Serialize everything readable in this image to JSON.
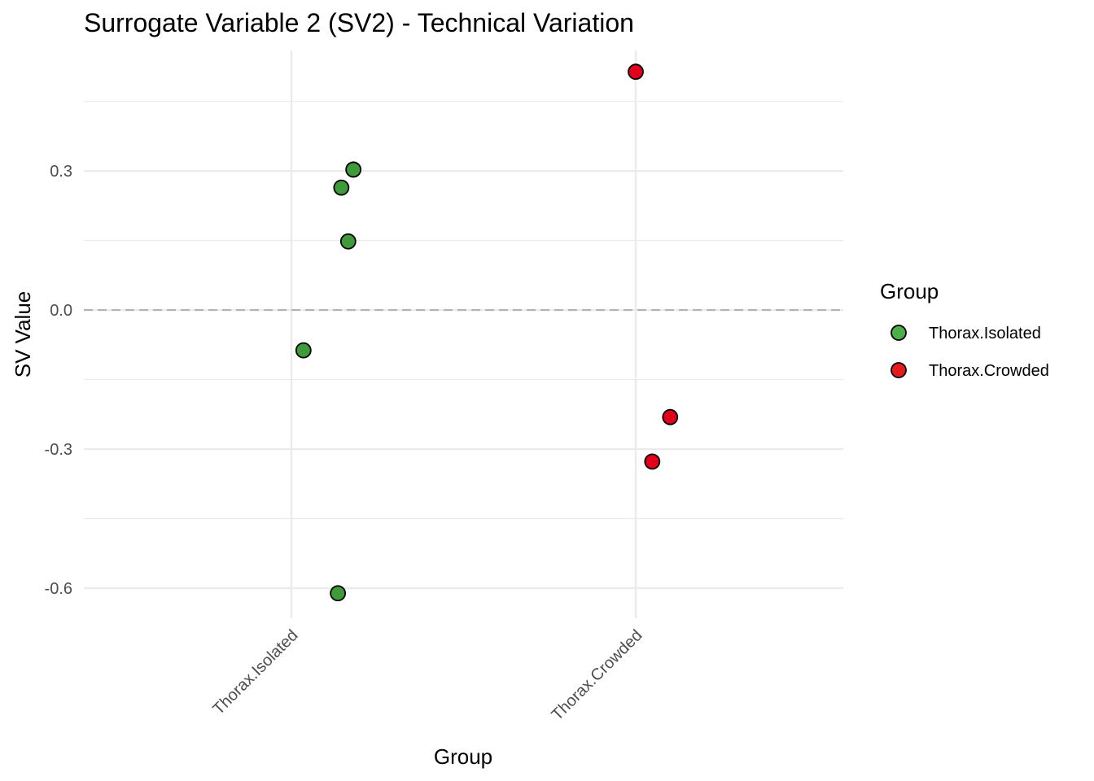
{
  "chart_data": {
    "type": "scatter",
    "title": "Surrogate Variable 2 (SV2) - Technical Variation",
    "xlabel": "Group",
    "ylabel": "SV Value",
    "categories": [
      "Thorax.Isolated",
      "Thorax.Crowded"
    ],
    "ylim": [
      -0.665,
      0.56
    ],
    "y_ticks": [
      -0.6,
      -0.3,
      0.0,
      0.3
    ],
    "y_tick_labels": [
      "-0.6",
      "-0.3",
      "0.0",
      "0.3"
    ],
    "y_minor_ticks": [
      -0.45,
      -0.15,
      0.15,
      0.45
    ],
    "reference_line": {
      "y": 0.0,
      "style": "dashed",
      "color": "#b3b3b3"
    },
    "grid": true,
    "legend": {
      "title": "Group",
      "position": "right",
      "entries": [
        {
          "label": "Thorax.Isolated",
          "color": "#4daf4a"
        },
        {
          "label": "Thorax.Crowded",
          "color": "#e41a1c"
        }
      ]
    },
    "series": [
      {
        "name": "Thorax.Isolated",
        "color": "#3f9b3a",
        "points": [
          {
            "jitter": 0.18,
            "y": 0.303
          },
          {
            "jitter": 0.145,
            "y": 0.264
          },
          {
            "jitter": 0.165,
            "y": 0.148
          },
          {
            "jitter": 0.035,
            "y": -0.087
          },
          {
            "jitter": 0.135,
            "y": -0.611
          }
        ]
      },
      {
        "name": "Thorax.Crowded",
        "color": "#e3001b",
        "points": [
          {
            "jitter": 0.0,
            "y": 0.514
          },
          {
            "jitter": 0.1,
            "y": -0.231
          },
          {
            "jitter": 0.048,
            "y": -0.327
          }
        ]
      }
    ]
  }
}
